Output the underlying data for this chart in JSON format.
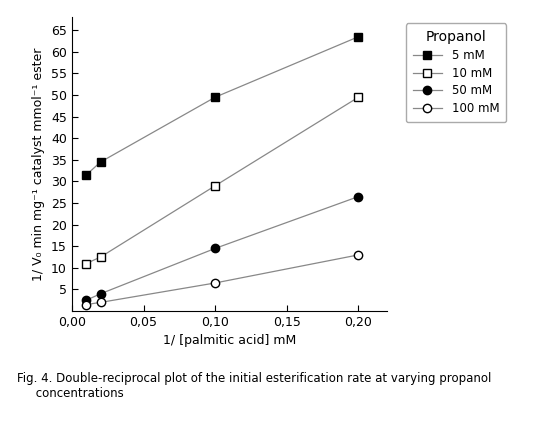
{
  "title": "Propanol",
  "xlabel": "1/ [palmitic acid] mM",
  "ylabel": "1/ V₀ min mg⁻¹ catalyst mmol⁻¹ ester",
  "caption": "Fig. 4. Double-reciprocal plot of the initial esterification rate at varying propanol\n     concentrations",
  "xlim": [
    0,
    0.22
  ],
  "ylim": [
    0,
    68
  ],
  "xticks": [
    0.0,
    0.05,
    0.1,
    0.15,
    0.2
  ],
  "yticks": [
    5,
    10,
    15,
    20,
    25,
    30,
    35,
    40,
    45,
    50,
    55,
    60,
    65
  ],
  "series": [
    {
      "label": "5 mM",
      "x": [
        0.01,
        0.02,
        0.1,
        0.2
      ],
      "y": [
        31.5,
        34.5,
        49.5,
        63.5
      ],
      "line_color": "#888888",
      "marker": "s",
      "fillstyle": "full",
      "linestyle": "-"
    },
    {
      "label": "10 mM",
      "x": [
        0.01,
        0.02,
        0.1,
        0.2
      ],
      "y": [
        11.0,
        12.5,
        29.0,
        49.5
      ],
      "line_color": "#888888",
      "marker": "s",
      "fillstyle": "none",
      "linestyle": "-"
    },
    {
      "label": "50 mM",
      "x": [
        0.01,
        0.02,
        0.1,
        0.2
      ],
      "y": [
        2.5,
        4.0,
        14.5,
        26.5
      ],
      "line_color": "#888888",
      "marker": "o",
      "fillstyle": "full",
      "linestyle": "-"
    },
    {
      "label": "100 mM",
      "x": [
        0.01,
        0.02,
        0.1,
        0.2
      ],
      "y": [
        1.5,
        2.0,
        6.5,
        13.0
      ],
      "line_color": "#888888",
      "marker": "o",
      "fillstyle": "none",
      "linestyle": "-"
    }
  ],
  "background_color": "#ffffff",
  "legend_title_fontsize": 10,
  "legend_fontsize": 8.5,
  "axis_label_fontsize": 9,
  "tick_fontsize": 9,
  "caption_fontsize": 8.5
}
